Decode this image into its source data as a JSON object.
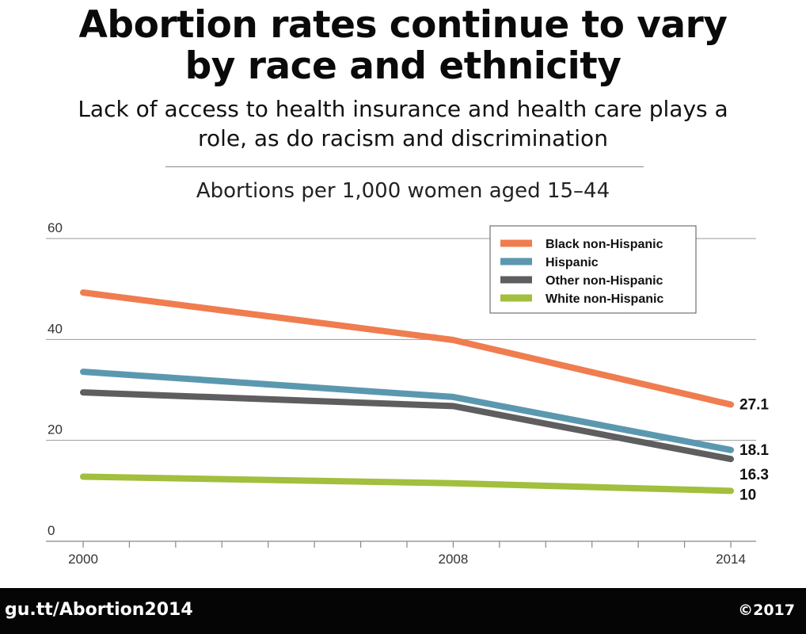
{
  "header": {
    "title_line1": "Abortion rates continue to vary",
    "title_line2": "by race and ethnicity",
    "subtitle_line1": "Lack of access to health insurance and health care plays a",
    "subtitle_line2": "role, as do racism and discrimination"
  },
  "footer": {
    "link": "gu.tt/Abortion2014",
    "copyright": "©2017"
  },
  "chart_data": {
    "type": "line",
    "title": "Abortions per 1,000 women aged 15–44",
    "xlabel": "",
    "ylabel": "",
    "x": [
      2000,
      2008,
      2014
    ],
    "xlim": [
      2000,
      2014
    ],
    "x_tick_labels": [
      "2000",
      "2008",
      "2014"
    ],
    "ylim": [
      0,
      60
    ],
    "y_ticks": [
      0,
      20,
      40,
      60
    ],
    "grid": true,
    "legend_position": "top-right",
    "series": [
      {
        "name": "Black non-Hispanic",
        "color": "#ef7d4f",
        "values": [
          49.3,
          39.9,
          27.1
        ],
        "end_label": "27.1"
      },
      {
        "name": "Hispanic",
        "color": "#5b98b0",
        "values": [
          33.6,
          28.6,
          18.1
        ],
        "end_label": "18.1"
      },
      {
        "name": "Other non-Hispanic",
        "color": "#5e5e60",
        "values": [
          29.5,
          26.8,
          16.3
        ],
        "end_label": "16.3"
      },
      {
        "name": "White non-Hispanic",
        "color": "#a2bf3d",
        "values": [
          12.8,
          11.5,
          10
        ],
        "end_label": "10"
      }
    ]
  }
}
